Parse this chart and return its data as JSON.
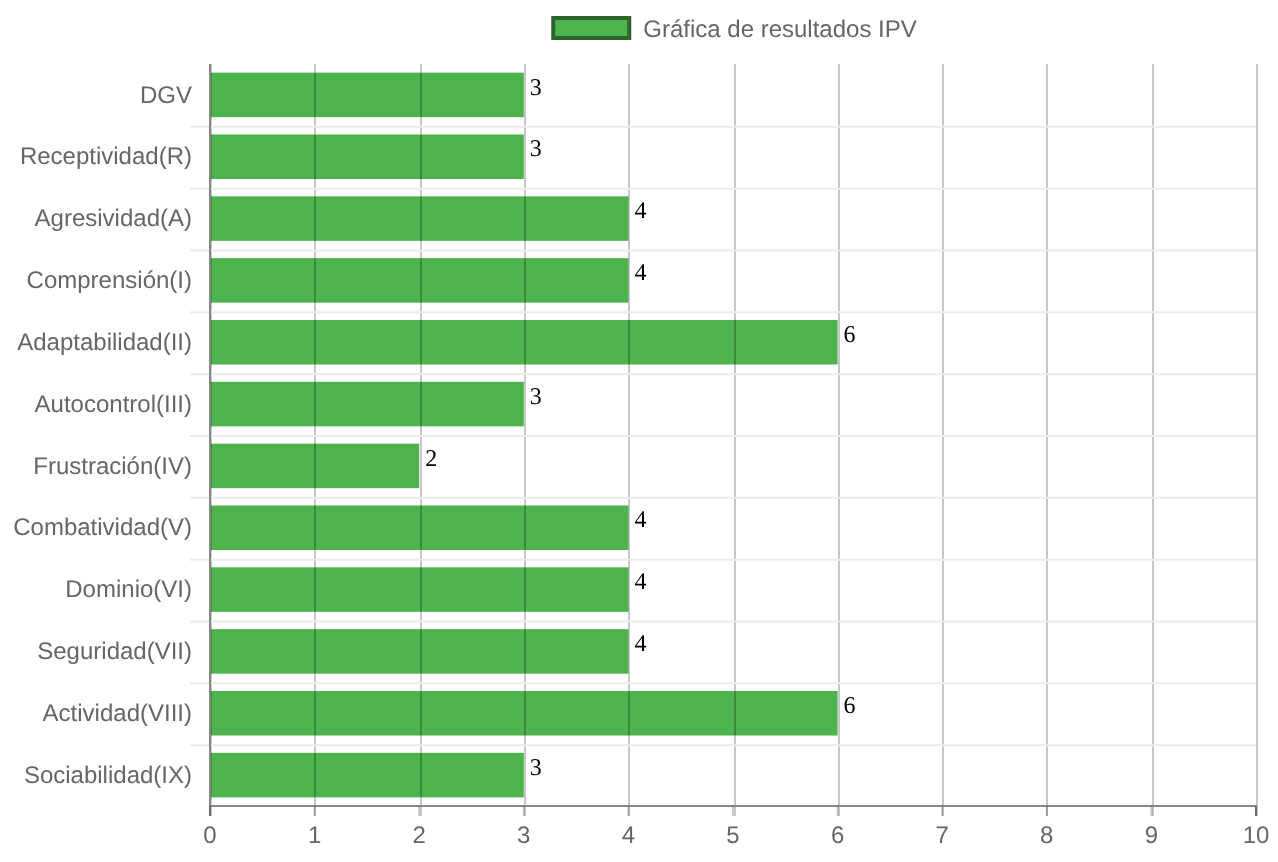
{
  "chart_data": {
    "type": "bar",
    "orientation": "horizontal",
    "categories": [
      "DGV",
      "Receptividad(R)",
      "Agresividad(A)",
      "Comprensión(I)",
      "Adaptabilidad(II)",
      "Autocontrol(III)",
      "Frustración(IV)",
      "Combatividad(V)",
      "Dominio(VI)",
      "Seguridad(VII)",
      "Actividad(VIII)",
      "Sociabilidad(IX)"
    ],
    "series": [
      {
        "name": "Gráfica de resultados IPV",
        "color": "#4db34d",
        "values": [
          3,
          3,
          4,
          4,
          6,
          3,
          2,
          4,
          4,
          4,
          6,
          3
        ]
      }
    ],
    "xlim": [
      0,
      10
    ],
    "xticks": [
      0,
      1,
      2,
      3,
      4,
      5,
      6,
      7,
      8,
      9,
      10
    ],
    "grid": true,
    "legend": "top",
    "data_labels": true
  }
}
